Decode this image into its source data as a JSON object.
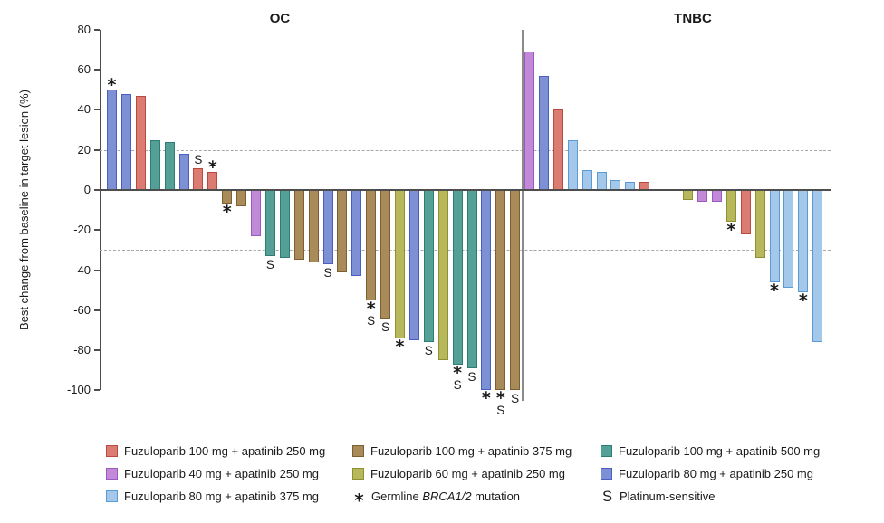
{
  "chart_data": {
    "type": "bar",
    "kind": "waterfall-best-change",
    "title": "",
    "ylabel": "Best change from baseline in target lesion (%)",
    "xlabel": "",
    "ylim": [
      -100,
      80
    ],
    "yticks": [
      80,
      60,
      40,
      20,
      0,
      -20,
      -40,
      -60,
      -80,
      -100
    ],
    "reference_lines_pct": [
      20,
      -30
    ],
    "grid": "dashed-reference-lines-only",
    "legend_position": "bottom",
    "marker_meanings": {
      "*": "Germline BRCA1/2 mutation",
      "S": "Platinum-sensitive"
    },
    "regimen_colors": {
      "f100a250": {
        "fill": "#DC7B72",
        "stroke": "#B94A40"
      },
      "f100a375": {
        "fill": "#A98B59",
        "stroke": "#7D5F31"
      },
      "f100a500": {
        "fill": "#55A096",
        "stroke": "#2E7D74"
      },
      "f40a250": {
        "fill": "#C289D9",
        "stroke": "#9C59C0"
      },
      "f60a250": {
        "fill": "#B7B85C",
        "stroke": "#8F9032"
      },
      "f80a250": {
        "fill": "#7D90D3",
        "stroke": "#4A5EC4"
      },
      "f80a375": {
        "fill": "#A3C8EA",
        "stroke": "#5B9BD5"
      }
    },
    "groups": [
      {
        "name": "OC",
        "bars": [
          {
            "value": 50,
            "regimen": "f80a250",
            "marker": "*"
          },
          {
            "value": 48,
            "regimen": "f80a250",
            "marker": ""
          },
          {
            "value": 47,
            "regimen": "f100a250",
            "marker": ""
          },
          {
            "value": 25,
            "regimen": "f100a500",
            "marker": ""
          },
          {
            "value": 24,
            "regimen": "f100a500",
            "marker": ""
          },
          {
            "value": 18,
            "regimen": "f80a250",
            "marker": ""
          },
          {
            "value": 11,
            "regimen": "f100a250",
            "marker": "S"
          },
          {
            "value": 9,
            "regimen": "f100a250",
            "marker": "*"
          },
          {
            "value": -7,
            "regimen": "f100a375",
            "marker": "*"
          },
          {
            "value": -8,
            "regimen": "f100a375",
            "marker": ""
          },
          {
            "value": -23,
            "regimen": "f40a250",
            "marker": ""
          },
          {
            "value": -33,
            "regimen": "f100a500",
            "marker": "S"
          },
          {
            "value": -34,
            "regimen": "f100a500",
            "marker": ""
          },
          {
            "value": -35,
            "regimen": "f100a375",
            "marker": ""
          },
          {
            "value": -36,
            "regimen": "f100a375",
            "marker": ""
          },
          {
            "value": -37,
            "regimen": "f80a250",
            "marker": "S"
          },
          {
            "value": -41,
            "regimen": "f100a375",
            "marker": ""
          },
          {
            "value": -43,
            "regimen": "f80a250",
            "marker": ""
          },
          {
            "value": -55,
            "regimen": "f100a375",
            "marker": "*S"
          },
          {
            "value": -64,
            "regimen": "f100a375",
            "marker": "S"
          },
          {
            "value": -74,
            "regimen": "f60a250",
            "marker": "*"
          },
          {
            "value": -75,
            "regimen": "f80a250",
            "marker": ""
          },
          {
            "value": -76,
            "regimen": "f100a500",
            "marker": "S"
          },
          {
            "value": -85,
            "regimen": "f60a250",
            "marker": ""
          },
          {
            "value": -87,
            "regimen": "f100a500",
            "marker": "*S"
          },
          {
            "value": -89,
            "regimen": "f100a500",
            "marker": "S"
          },
          {
            "value": -100,
            "regimen": "f80a250",
            "marker": "*"
          },
          {
            "value": -100,
            "regimen": "f100a375",
            "marker": "*S"
          },
          {
            "value": -100,
            "regimen": "f100a375",
            "marker": "S"
          }
        ]
      },
      {
        "name": "TNBC",
        "gap_after_index": 8,
        "bars": [
          {
            "value": 69,
            "regimen": "f40a250",
            "marker": ""
          },
          {
            "value": 57,
            "regimen": "f80a250",
            "marker": ""
          },
          {
            "value": 40,
            "regimen": "f100a250",
            "marker": ""
          },
          {
            "value": 25,
            "regimen": "f80a375",
            "marker": ""
          },
          {
            "value": 10,
            "regimen": "f80a375",
            "marker": ""
          },
          {
            "value": 9,
            "regimen": "f80a375",
            "marker": ""
          },
          {
            "value": 5,
            "regimen": "f80a375",
            "marker": ""
          },
          {
            "value": 4,
            "regimen": "f80a375",
            "marker": ""
          },
          {
            "value": 4,
            "regimen": "f100a250",
            "marker": ""
          },
          {
            "value": -5,
            "regimen": "f60a250",
            "marker": ""
          },
          {
            "value": -6,
            "regimen": "f40a250",
            "marker": ""
          },
          {
            "value": -6,
            "regimen": "f40a250",
            "marker": ""
          },
          {
            "value": -16,
            "regimen": "f60a250",
            "marker": "*"
          },
          {
            "value": -22,
            "regimen": "f100a250",
            "marker": ""
          },
          {
            "value": -34,
            "regimen": "f60a250",
            "marker": ""
          },
          {
            "value": -46,
            "regimen": "f80a375",
            "marker": "*"
          },
          {
            "value": -49,
            "regimen": "f80a375",
            "marker": ""
          },
          {
            "value": -51,
            "regimen": "f80a375",
            "marker": "*"
          },
          {
            "value": -76,
            "regimen": "f80a375",
            "marker": ""
          }
        ]
      }
    ]
  },
  "legend": {
    "items": [
      {
        "type": "swatch",
        "regimen": "f100a250",
        "label": "Fuzuloparib 100 mg + apatinib 250 mg"
      },
      {
        "type": "swatch",
        "regimen": "f100a375",
        "label": "Fuzuloparib 100 mg + apatinib 375 mg"
      },
      {
        "type": "swatch",
        "regimen": "f100a500",
        "label": "Fuzuloparib 100 mg + apatinib 500 mg"
      },
      {
        "type": "swatch",
        "regimen": "f40a250",
        "label": "Fuzuloparib 40 mg + apatinib 250 mg"
      },
      {
        "type": "swatch",
        "regimen": "f60a250",
        "label": "Fuzuloparib 60 mg + apatinib 250 mg"
      },
      {
        "type": "swatch",
        "regimen": "f80a250",
        "label": "Fuzuloparib 80 mg + apatinib 250 mg"
      },
      {
        "type": "swatch",
        "regimen": "f80a375",
        "label": "Fuzuloparib 80 mg + apatinib 375 mg"
      },
      {
        "type": "symbol",
        "symbol": "*",
        "label_prefix": "Germline ",
        "label_italic": "BRCA1/2",
        "label_suffix": " mutation"
      },
      {
        "type": "symbol",
        "symbol": "S",
        "label_prefix": "Platinum-sensitive",
        "label_italic": "",
        "label_suffix": ""
      }
    ]
  }
}
